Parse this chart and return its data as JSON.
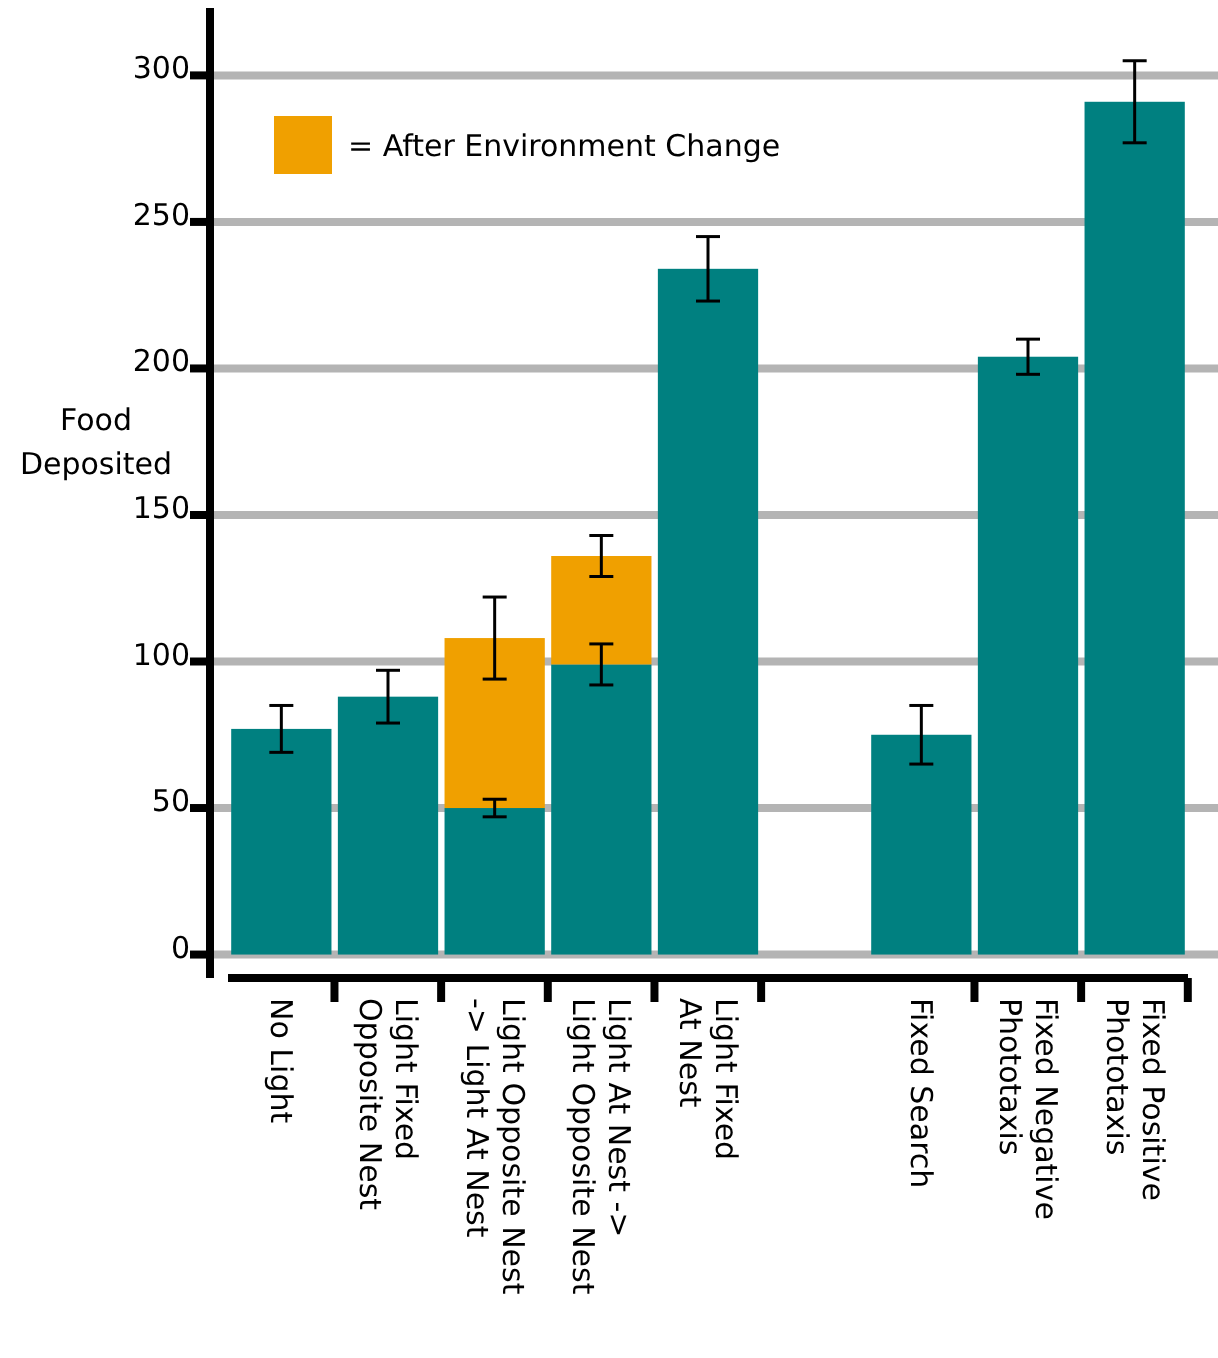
{
  "chart_data": {
    "type": "bar",
    "stacked": true,
    "ylabel": "Food\nDeposited",
    "categories": [
      "No Light",
      "Light Fixed\nOpposite Nest",
      "Light Opposite Nest\n-> Light At Nest",
      "Light At Nest ->\nLight Opposite Nest",
      "Light Fixed\nAt Nest",
      null,
      "Fixed Search",
      "Fixed Negative\nPhototaxis",
      "Fixed Positive\nPhototaxis"
    ],
    "series": [
      {
        "color": "#008080",
        "values": [
          77,
          88,
          50,
          99,
          234,
          null,
          75,
          204,
          291
        ],
        "errors": [
          8,
          9,
          3,
          7,
          11,
          null,
          10,
          6,
          14
        ]
      },
      {
        "name": "= After Environment Change",
        "color": "#f0a000",
        "values": [
          null,
          null,
          58,
          37,
          null,
          null,
          null,
          null,
          null
        ],
        "errors": [
          null,
          null,
          14,
          7,
          null,
          null,
          null,
          null,
          null
        ]
      }
    ],
    "ylim": [
      -8,
      323
    ],
    "yticks": [
      0,
      50,
      100,
      150,
      200,
      250,
      300
    ],
    "grid": "y",
    "legend": "top left"
  }
}
